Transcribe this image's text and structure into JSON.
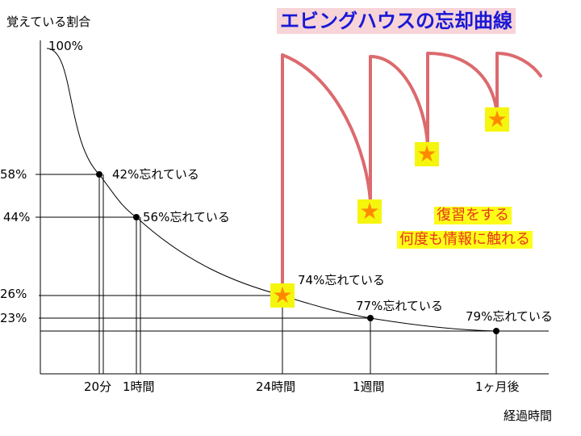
{
  "chart_data": {
    "type": "line",
    "title": "エビングハウスの忘却曲線",
    "ylabel": "覚えている割合",
    "xlabel": "経過時間",
    "ylim": [
      0,
      100
    ],
    "grid": false,
    "series": [
      {
        "curve": [
          100,
          58,
          44,
          26,
          23,
          21
        ],
        "points": [
          {
            "x": "20分",
            "remembered": 58,
            "label": "42%忘れている"
          },
          {
            "x": "1時間",
            "remembered": 44,
            "label": "56%忘れている"
          },
          {
            "x": "24時間",
            "remembered": 26,
            "label": "74%忘れている"
          },
          {
            "x": "1週間",
            "remembered": 23,
            "label": "77%忘れている"
          },
          {
            "x": "1ヶ月後",
            "remembered": 21,
            "label": "79%忘れている"
          }
        ]
      }
    ],
    "x_ticks": [
      "20分",
      "1時間",
      "24時間",
      "1週間",
      "1ヶ月後"
    ],
    "y_ticks": [
      "100%",
      "58%",
      "44%",
      "26%",
      "23%"
    ],
    "annotation": [
      "復習をする",
      "何度も情報に触れる"
    ],
    "star_marker": "star-icon",
    "colors": {
      "title_text": "#1a18d6",
      "title_background": "#f6d4d8",
      "review_curve": "#dc6a6e",
      "note_text": "#e8351a",
      "note_background": "#fdfd1a",
      "star": "#ff8a00",
      "star_background": "#f5f50e"
    }
  }
}
